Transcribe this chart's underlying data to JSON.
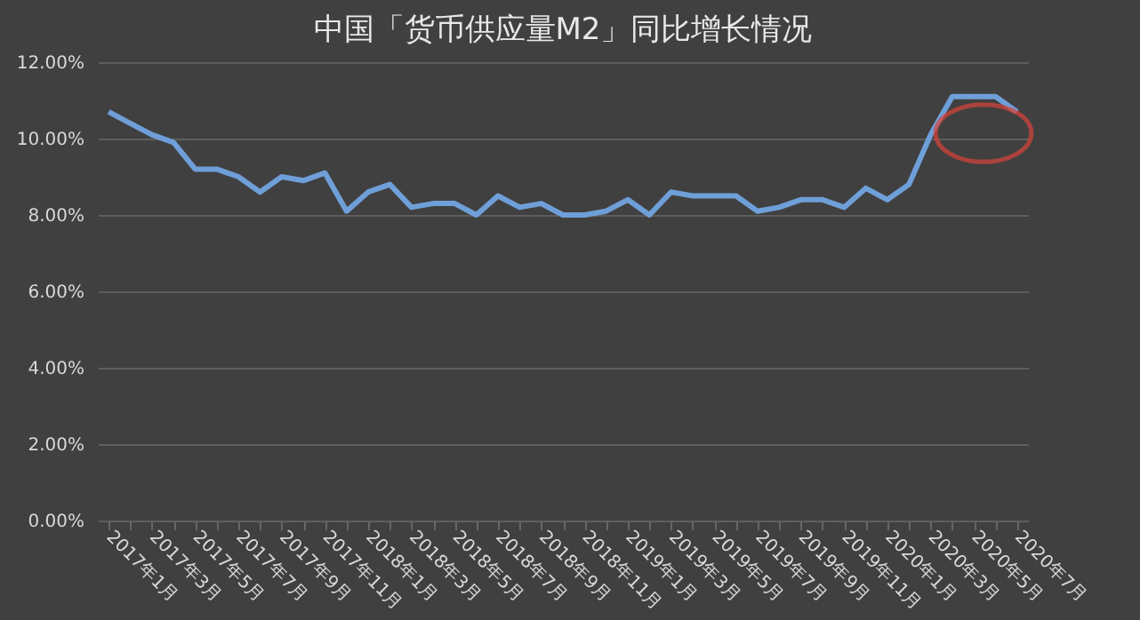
{
  "chart_data": {
    "type": "line",
    "title": "中国「货币供应量M2」同比增长情况",
    "categories": [
      "2017年1月",
      null,
      "2017年3月",
      null,
      "2017年5月",
      null,
      "2017年7月",
      null,
      "2017年9月",
      null,
      "2017年11月",
      null,
      "2018年1月",
      null,
      "2018年3月",
      null,
      "2018年5月",
      null,
      "2018年7月",
      null,
      "2018年9月",
      null,
      "2018年11月",
      null,
      "2019年1月",
      null,
      "2019年3月",
      null,
      "2019年5月",
      null,
      "2019年7月",
      null,
      "2019年9月",
      null,
      "2019年11月",
      null,
      "2020年1月",
      null,
      "2020年3月",
      null,
      "2020年5月",
      null,
      "2020年7月"
    ],
    "series": [
      {
        "color": "#6f9fd8",
        "values": [
          10.7,
          10.4,
          10.1,
          9.9,
          9.2,
          9.2,
          9.0,
          8.6,
          9.0,
          8.9,
          9.1,
          8.1,
          8.6,
          8.8,
          8.2,
          8.3,
          8.3,
          8.0,
          8.5,
          8.2,
          8.3,
          8.0,
          8.0,
          8.1,
          8.4,
          8.0,
          8.6,
          8.5,
          8.5,
          8.5,
          8.1,
          8.2,
          8.4,
          8.4,
          8.2,
          8.7,
          8.4,
          8.8,
          10.1,
          11.1,
          11.1,
          11.1,
          10.7
        ]
      }
    ],
    "ylim": [
      0,
      12
    ],
    "yticks": [
      {
        "value": 0,
        "label": "0.00%"
      },
      {
        "value": 2,
        "label": "2.00%"
      },
      {
        "value": 4,
        "label": "4.00%"
      },
      {
        "value": 6,
        "label": "6.00%"
      },
      {
        "value": 8,
        "label": "8.00%"
      },
      {
        "value": 10,
        "label": "10.00%"
      },
      {
        "value": 12,
        "label": "12.00%"
      }
    ],
    "grid": "y",
    "legend": false,
    "marker": "none",
    "line_style": "solid"
  }
}
